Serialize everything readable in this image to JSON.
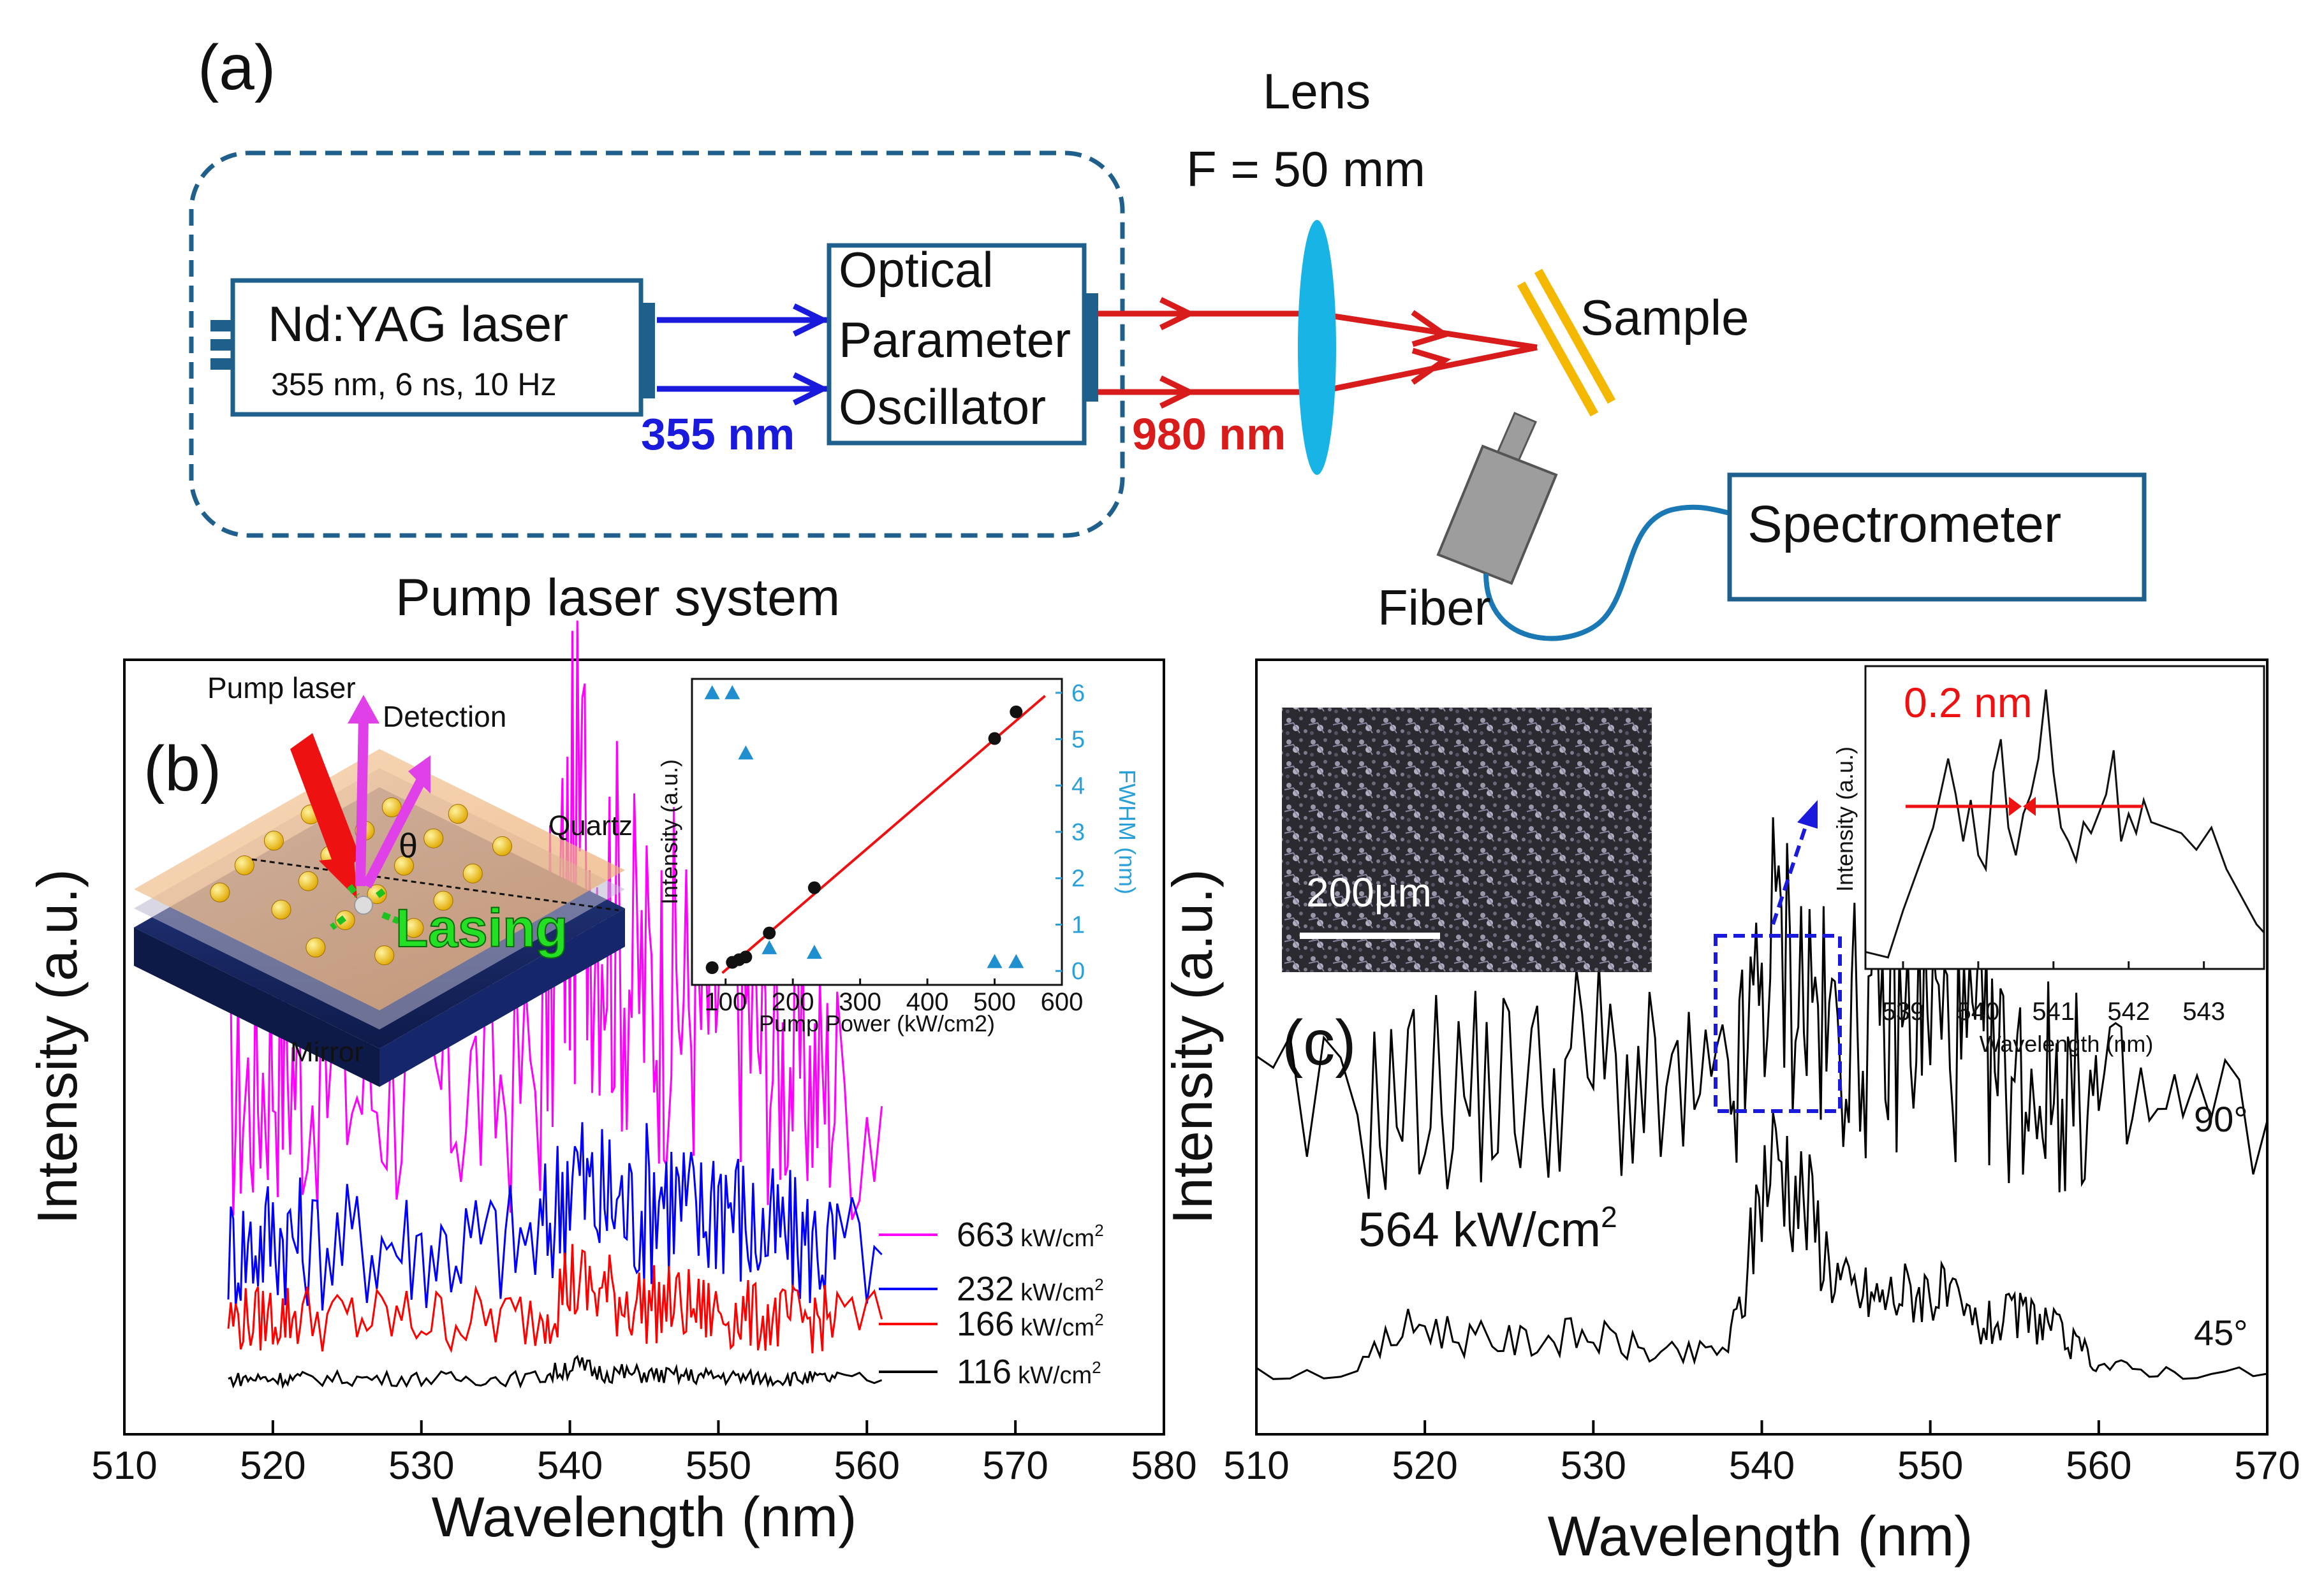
{
  "panel_a": {
    "label": "(a)",
    "nd_yag": {
      "title": "Nd:YAG laser",
      "spec": "355 nm, 6 ns, 10 Hz"
    },
    "opo": {
      "line1": "Optical",
      "line2": "Parameter",
      "line3": "Oscillator"
    },
    "beam_uv": "355 nm",
    "beam_ir": "980 nm",
    "lens": {
      "line1": "Lens",
      "line2": "F = 50 mm"
    },
    "sample": "Sample",
    "spectrometer": "Spectrometer",
    "fiber": "Fiber",
    "pump_system": "Pump laser system",
    "colors": {
      "uv": "#1a1adc",
      "ir": "#d81c1c",
      "box": "#1f5f8b",
      "lens": "#19b4e6",
      "sample": "#f5b800"
    }
  },
  "panel_b": {
    "label": "(b)",
    "schematic": {
      "pump": "Pump laser",
      "detection": "Detection",
      "theta": "θ",
      "quartz": "Quartz",
      "lasing": "Lasing",
      "mirror": "Mirror"
    },
    "legend": [
      {
        "value": "663",
        "unit": "kW/cm",
        "sup": "2",
        "color": "#ff00ff"
      },
      {
        "value": "232",
        "unit": "kW/cm",
        "sup": "2",
        "color": "#0000ff"
      },
      {
        "value": "166",
        "unit": "kW/cm",
        "sup": "2",
        "color": "#ff0000"
      },
      {
        "value": "116",
        "unit": "kW/cm",
        "sup": "2",
        "color": "#000000"
      }
    ]
  },
  "panel_c": {
    "label": "(c)",
    "scale_bar": "200μm",
    "pump_power": {
      "value": "564 kW/cm",
      "sup": "2"
    },
    "angles": [
      "90°",
      "45°"
    ],
    "fwhm_note": "0.2 nm"
  },
  "chart_data": [
    {
      "id": "b-main",
      "type": "line",
      "xlabel": "Wavelength (nm)",
      "ylabel": "Intensity (a.u.)",
      "xlim": [
        510,
        580
      ],
      "xticks": [
        "510",
        "520",
        "530",
        "540",
        "550",
        "560",
        "570",
        "580"
      ],
      "x": [
        517,
        518,
        519,
        520,
        521,
        522,
        524,
        526,
        528,
        530,
        532,
        534,
        536,
        538,
        539,
        540,
        541,
        542,
        543,
        544,
        545,
        546,
        547,
        548,
        549,
        550,
        551,
        552,
        553,
        554,
        555,
        556,
        557,
        558,
        561
      ],
      "series": [
        {
          "name": "663 kW/cm2",
          "color": "#ff00ff",
          "offset": 3.4,
          "values": [
            0.2,
            0.35,
            0.5,
            0.95,
            0.85,
            0.6,
            0.55,
            0.5,
            0.55,
            0.4,
            0.4,
            0.45,
            0.5,
            0.75,
            2.1,
            3.3,
            3.8,
            3.4,
            2.6,
            2.1,
            1.8,
            1.7,
            1.8,
            1.6,
            1.4,
            1.9,
            2.1,
            1.4,
            1.0,
            0.8,
            0.8,
            0.6,
            0.55,
            0.45,
            0.2
          ]
        },
        {
          "name": "232 kW/cm2",
          "color": "#0000ff",
          "offset": 1.6,
          "values": [
            0.1,
            0.15,
            0.2,
            0.35,
            0.3,
            0.2,
            0.2,
            0.2,
            0.25,
            0.15,
            0.15,
            0.2,
            0.2,
            0.25,
            0.6,
            1.3,
            0.9,
            0.7,
            0.8,
            0.6,
            0.7,
            1.0,
            0.8,
            0.6,
            0.5,
            1.0,
            0.7,
            0.4,
            0.3,
            0.3,
            0.25,
            0.2,
            0.15,
            0.1,
            0.05
          ]
        },
        {
          "name": "166 kW/cm2",
          "color": "#ff0000",
          "offset": 0.75,
          "values": [
            0.05,
            0.05,
            0.05,
            0.1,
            0.1,
            0.1,
            0.05,
            0.05,
            0.05,
            0.05,
            0.05,
            0.05,
            0.05,
            0.1,
            0.35,
            0.55,
            0.45,
            0.4,
            0.35,
            0.3,
            0.25,
            0.25,
            0.25,
            0.2,
            0.15,
            0.15,
            0.1,
            0.1,
            0.05,
            0.05,
            0.05,
            0.05,
            0.05,
            0.05,
            0.05
          ]
        },
        {
          "name": "116 kW/cm2",
          "color": "#000000",
          "offset": 0.0,
          "values": [
            0.0,
            0.02,
            0.02,
            0.02,
            0.02,
            0.02,
            0.02,
            0.02,
            0.02,
            0.02,
            0.02,
            0.02,
            0.02,
            0.03,
            0.1,
            0.2,
            0.15,
            0.1,
            0.1,
            0.08,
            0.08,
            0.06,
            0.06,
            0.05,
            0.05,
            0.05,
            0.04,
            0.03,
            0.03,
            0.02,
            0.02,
            0.02,
            0.02,
            0.02,
            0.0
          ]
        }
      ]
    },
    {
      "id": "b-inset",
      "type": "scatter",
      "xlabel": "Pump Power (kW/cm2)",
      "ylabel": "Intensity (a.u.)",
      "y2label": "FWHM (nm)",
      "xlim": [
        50,
        600
      ],
      "xticks": [
        "100",
        "200",
        "300",
        "400",
        "500",
        "600"
      ],
      "ylim": [
        0,
        1
      ],
      "y2lim": [
        -0.3,
        6.3
      ],
      "y2ticks": [
        "0",
        "1",
        "2",
        "3",
        "4",
        "5",
        "6"
      ],
      "intensity": {
        "x": [
          80,
          110,
          120,
          130,
          165,
          232,
          500,
          532
        ],
        "y": [
          0.0,
          0.02,
          0.03,
          0.04,
          0.13,
          0.3,
          0.86,
          0.96
        ]
      },
      "fit": {
        "x": [
          95,
          575
        ],
        "y": [
          -0.02,
          1.02
        ]
      },
      "fwhm": {
        "x": [
          80,
          110,
          130,
          165,
          232,
          500,
          532
        ],
        "y": [
          6.0,
          6.0,
          4.7,
          0.5,
          0.4,
          0.2,
          0.2
        ]
      }
    },
    {
      "id": "c-main",
      "type": "line",
      "xlabel": "Wavelength (nm)",
      "ylabel": "Intensity (a.u.)",
      "xlim": [
        510,
        570
      ],
      "xticks": [
        "510",
        "520",
        "530",
        "540",
        "550",
        "560",
        "570"
      ],
      "x": [
        510,
        516,
        518,
        520,
        522,
        524,
        526,
        528,
        530,
        532,
        534,
        536,
        538,
        539,
        540,
        541,
        542,
        543,
        544,
        545,
        546,
        547,
        548,
        549,
        550,
        551,
        552,
        553,
        554,
        555,
        556,
        557,
        558,
        559,
        560,
        562,
        565,
        570
      ],
      "series": [
        {
          "name": "90°",
          "color": "#000000",
          "offset": 2.7,
          "values": [
            0.0,
            0.02,
            0.2,
            0.35,
            0.3,
            0.4,
            0.35,
            0.45,
            0.7,
            0.4,
            0.2,
            0.15,
            0.15,
            0.6,
            1.6,
            1.9,
            1.5,
            1.3,
            0.8,
            1.1,
            0.9,
            0.95,
            1.0,
            1.1,
            1.2,
            0.9,
            0.75,
            0.7,
            0.5,
            0.45,
            0.4,
            0.4,
            0.3,
            0.25,
            0.2,
            0.05,
            0.02,
            0.0
          ]
        },
        {
          "name": "45°",
          "color": "#000000",
          "offset": 0.0,
          "values": [
            0.0,
            0.02,
            0.4,
            0.55,
            0.4,
            0.35,
            0.35,
            0.4,
            0.4,
            0.3,
            0.2,
            0.2,
            0.3,
            0.9,
            2.1,
            2.4,
            2.0,
            1.7,
            1.2,
            0.9,
            0.85,
            0.8,
            0.85,
            0.9,
            0.9,
            0.8,
            0.6,
            0.5,
            0.55,
            0.6,
            0.6,
            0.55,
            0.35,
            0.25,
            0.1,
            0.05,
            0.02,
            0.0
          ]
        }
      ]
    },
    {
      "id": "c-inset",
      "type": "line",
      "xlabel": "Wavelength (nm)",
      "ylabel": "Intensity (a.u.)",
      "xlim": [
        538.5,
        543.8
      ],
      "xticks": [
        "539",
        "540",
        "541",
        "542",
        "543"
      ],
      "x": [
        538.5,
        538.8,
        539.0,
        539.2,
        539.4,
        539.6,
        539.7,
        539.8,
        539.9,
        540.0,
        540.1,
        540.2,
        540.3,
        540.4,
        540.5,
        540.6,
        540.7,
        540.8,
        540.9,
        541.0,
        541.1,
        541.2,
        541.3,
        541.4,
        541.5,
        541.6,
        541.7,
        541.8,
        541.9,
        542.0,
        542.1,
        542.2,
        542.3,
        542.5,
        542.7,
        542.9,
        543.1,
        543.3,
        543.5,
        543.7,
        543.8
      ],
      "values": [
        0.05,
        0.03,
        0.2,
        0.35,
        0.5,
        0.75,
        0.62,
        0.45,
        0.6,
        0.4,
        0.35,
        0.7,
        0.82,
        0.5,
        0.4,
        0.55,
        0.62,
        0.75,
        1.0,
        0.7,
        0.5,
        0.45,
        0.38,
        0.52,
        0.48,
        0.55,
        0.62,
        0.78,
        0.45,
        0.55,
        0.48,
        0.6,
        0.52,
        0.5,
        0.48,
        0.42,
        0.5,
        0.35,
        0.25,
        0.15,
        0.12
      ]
    }
  ]
}
